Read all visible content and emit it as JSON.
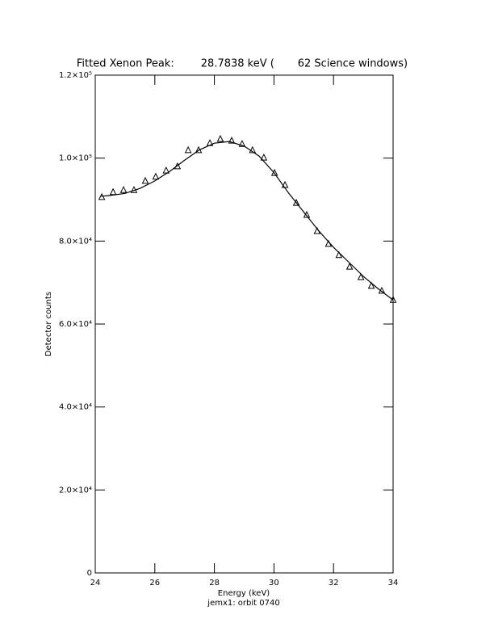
{
  "chart_data": {
    "type": "scatter",
    "title": "Fitted Xenon Peak:        28.7838 keV (       62 Science windows)",
    "x_label": "Energy (keV)",
    "subtitle": "jemx1: orbit 0740",
    "y_label": "Detector counts",
    "color": "#000000",
    "xlim": [
      24,
      34
    ],
    "xticks": [
      24,
      26,
      28,
      30,
      32,
      34
    ],
    "ylim": [
      0,
      120000
    ],
    "yticks": [
      0,
      {
        "value": 20000,
        "label": "2.0×10⁴"
      },
      {
        "value": 40000,
        "label": "4.0×10⁴"
      },
      {
        "value": 60000,
        "label": "6.0×10⁴"
      },
      {
        "value": 80000,
        "label": "8.0×10⁴"
      },
      {
        "value": 100000,
        "label": "1.0×10⁵"
      },
      {
        "value": 120000,
        "label": "1.2×10⁵"
      }
    ],
    "series": [
      {
        "type": "scatter",
        "marker": "triangle",
        "x": [
          24.22,
          24.6,
          24.95,
          25.3,
          25.68,
          26.03,
          26.38,
          26.76,
          27.12,
          27.47,
          27.85,
          28.2,
          28.58,
          28.93,
          29.28,
          29.66,
          30.02,
          30.37,
          30.75,
          31.1,
          31.45,
          31.83,
          32.18,
          32.54,
          32.92,
          33.27,
          33.62,
          34.0
        ],
        "values": [
          90600,
          91800,
          92300,
          92300,
          94500,
          95500,
          97000,
          98000,
          101900,
          101900,
          103600,
          104600,
          104200,
          103400,
          101900,
          100100,
          96400,
          93500,
          89200,
          86300,
          82400,
          79300,
          76600,
          73800,
          71300,
          69200,
          68000,
          65800
        ]
      },
      {
        "type": "line",
        "x": [
          24.2,
          24.5,
          25,
          25.5,
          26,
          26.5,
          27,
          27.5,
          28,
          28.5,
          29,
          29.5,
          30,
          30.5,
          31,
          31.5,
          32,
          32.5,
          33,
          33.5,
          34
        ],
        "values": [
          90800,
          91000,
          91500,
          92700,
          94500,
          96800,
          99500,
          102000,
          103600,
          104000,
          102900,
          100500,
          96500,
          91500,
          87000,
          82500,
          78500,
          75000,
          71500,
          68500,
          65800
        ]
      }
    ]
  }
}
